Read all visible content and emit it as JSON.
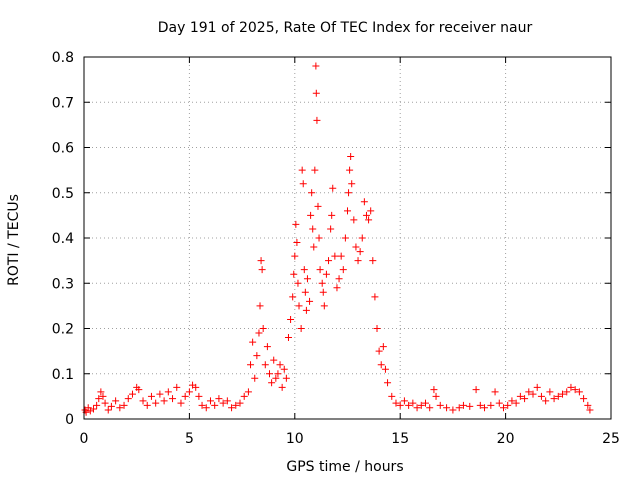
{
  "chart_data": {
    "type": "scatter",
    "title": "Day 191 of 2025, Rate Of TEC Index for receiver naur",
    "xlabel": "GPS time / hours",
    "ylabel": "ROTI / TECUs",
    "xlim": [
      0,
      25
    ],
    "ylim": [
      0,
      0.8
    ],
    "xticks": [
      0,
      5,
      10,
      15,
      20,
      25
    ],
    "yticks": [
      0,
      0.1,
      0.2,
      0.3,
      0.4,
      0.5,
      0.6,
      0.7,
      0.8
    ],
    "xtick_labels": [
      "0",
      "5",
      "10",
      "15",
      "20",
      "25"
    ],
    "ytick_labels": [
      "0",
      "0.1",
      "0.2",
      "0.3",
      "0.4",
      "0.5",
      "0.6",
      "0.7",
      "0.8"
    ],
    "grid": true,
    "marker": "+",
    "color": "#ff0000",
    "series": [
      {
        "points": [
          [
            0.05,
            0.02
          ],
          [
            0.1,
            0.015
          ],
          [
            0.2,
            0.025
          ],
          [
            0.3,
            0.018
          ],
          [
            0.45,
            0.022
          ],
          [
            0.6,
            0.03
          ],
          [
            0.7,
            0.045
          ],
          [
            0.8,
            0.06
          ],
          [
            0.9,
            0.05
          ],
          [
            1.0,
            0.035
          ],
          [
            1.15,
            0.02
          ],
          [
            1.3,
            0.028
          ],
          [
            1.5,
            0.04
          ],
          [
            1.7,
            0.025
          ],
          [
            1.9,
            0.03
          ],
          [
            2.1,
            0.045
          ],
          [
            2.3,
            0.055
          ],
          [
            2.5,
            0.07
          ],
          [
            2.6,
            0.065
          ],
          [
            2.8,
            0.04
          ],
          [
            3.0,
            0.03
          ],
          [
            3.2,
            0.05
          ],
          [
            3.4,
            0.035
          ],
          [
            3.6,
            0.055
          ],
          [
            3.8,
            0.04
          ],
          [
            4.0,
            0.06
          ],
          [
            4.2,
            0.045
          ],
          [
            4.4,
            0.07
          ],
          [
            4.6,
            0.035
          ],
          [
            4.8,
            0.05
          ],
          [
            5.0,
            0.06
          ],
          [
            5.15,
            0.075
          ],
          [
            5.3,
            0.07
          ],
          [
            5.45,
            0.05
          ],
          [
            5.6,
            0.03
          ],
          [
            5.8,
            0.025
          ],
          [
            6.0,
            0.04
          ],
          [
            6.2,
            0.03
          ],
          [
            6.4,
            0.045
          ],
          [
            6.6,
            0.035
          ],
          [
            6.8,
            0.04
          ],
          [
            7.0,
            0.025
          ],
          [
            7.2,
            0.03
          ],
          [
            7.4,
            0.035
          ],
          [
            7.6,
            0.05
          ],
          [
            7.8,
            0.06
          ],
          [
            7.9,
            0.12
          ],
          [
            8.0,
            0.17
          ],
          [
            8.1,
            0.09
          ],
          [
            8.2,
            0.14
          ],
          [
            8.3,
            0.19
          ],
          [
            8.35,
            0.25
          ],
          [
            8.4,
            0.35
          ],
          [
            8.45,
            0.33
          ],
          [
            8.5,
            0.2
          ],
          [
            8.6,
            0.12
          ],
          [
            8.7,
            0.16
          ],
          [
            8.8,
            0.1
          ],
          [
            8.9,
            0.08
          ],
          [
            9.0,
            0.13
          ],
          [
            9.1,
            0.09
          ],
          [
            9.2,
            0.1
          ],
          [
            9.3,
            0.12
          ],
          [
            9.4,
            0.07
          ],
          [
            9.5,
            0.11
          ],
          [
            9.6,
            0.09
          ],
          [
            9.7,
            0.18
          ],
          [
            9.8,
            0.22
          ],
          [
            9.9,
            0.27
          ],
          [
            9.95,
            0.32
          ],
          [
            10.0,
            0.36
          ],
          [
            10.05,
            0.43
          ],
          [
            10.1,
            0.39
          ],
          [
            10.15,
            0.3
          ],
          [
            10.2,
            0.25
          ],
          [
            10.3,
            0.2
          ],
          [
            10.35,
            0.55
          ],
          [
            10.4,
            0.52
          ],
          [
            10.45,
            0.33
          ],
          [
            10.5,
            0.28
          ],
          [
            10.55,
            0.24
          ],
          [
            10.6,
            0.31
          ],
          [
            10.7,
            0.26
          ],
          [
            10.75,
            0.45
          ],
          [
            10.8,
            0.5
          ],
          [
            10.85,
            0.42
          ],
          [
            10.9,
            0.38
          ],
          [
            10.95,
            0.55
          ],
          [
            11.0,
            0.78
          ],
          [
            11.02,
            0.72
          ],
          [
            11.05,
            0.66
          ],
          [
            11.1,
            0.47
          ],
          [
            11.15,
            0.4
          ],
          [
            11.2,
            0.33
          ],
          [
            11.3,
            0.3
          ],
          [
            11.35,
            0.28
          ],
          [
            11.4,
            0.25
          ],
          [
            11.5,
            0.32
          ],
          [
            11.6,
            0.35
          ],
          [
            11.7,
            0.42
          ],
          [
            11.75,
            0.45
          ],
          [
            11.8,
            0.51
          ],
          [
            11.9,
            0.36
          ],
          [
            12.0,
            0.29
          ],
          [
            12.1,
            0.31
          ],
          [
            12.2,
            0.36
          ],
          [
            12.3,
            0.33
          ],
          [
            12.4,
            0.4
          ],
          [
            12.5,
            0.46
          ],
          [
            12.55,
            0.5
          ],
          [
            12.6,
            0.55
          ],
          [
            12.65,
            0.58
          ],
          [
            12.7,
            0.52
          ],
          [
            12.8,
            0.44
          ],
          [
            12.9,
            0.38
          ],
          [
            13.0,
            0.35
          ],
          [
            13.1,
            0.37
          ],
          [
            13.2,
            0.4
          ],
          [
            13.3,
            0.48
          ],
          [
            13.4,
            0.45
          ],
          [
            13.5,
            0.44
          ],
          [
            13.6,
            0.46
          ],
          [
            13.7,
            0.35
          ],
          [
            13.8,
            0.27
          ],
          [
            13.9,
            0.2
          ],
          [
            14.0,
            0.15
          ],
          [
            14.1,
            0.12
          ],
          [
            14.2,
            0.16
          ],
          [
            14.3,
            0.11
          ],
          [
            14.4,
            0.08
          ],
          [
            14.6,
            0.05
          ],
          [
            14.8,
            0.035
          ],
          [
            15.0,
            0.03
          ],
          [
            15.2,
            0.04
          ],
          [
            15.4,
            0.03
          ],
          [
            15.6,
            0.035
          ],
          [
            15.8,
            0.025
          ],
          [
            16.0,
            0.03
          ],
          [
            16.2,
            0.035
          ],
          [
            16.4,
            0.025
          ],
          [
            16.6,
            0.065
          ],
          [
            16.7,
            0.05
          ],
          [
            16.9,
            0.03
          ],
          [
            17.2,
            0.025
          ],
          [
            17.5,
            0.02
          ],
          [
            17.8,
            0.025
          ],
          [
            18.0,
            0.03
          ],
          [
            18.3,
            0.028
          ],
          [
            18.6,
            0.065
          ],
          [
            18.8,
            0.03
          ],
          [
            19.0,
            0.025
          ],
          [
            19.3,
            0.03
          ],
          [
            19.5,
            0.06
          ],
          [
            19.7,
            0.035
          ],
          [
            19.9,
            0.025
          ],
          [
            20.1,
            0.03
          ],
          [
            20.3,
            0.04
          ],
          [
            20.5,
            0.035
          ],
          [
            20.7,
            0.05
          ],
          [
            20.9,
            0.045
          ],
          [
            21.1,
            0.06
          ],
          [
            21.3,
            0.055
          ],
          [
            21.5,
            0.07
          ],
          [
            21.7,
            0.05
          ],
          [
            21.9,
            0.04
          ],
          [
            22.1,
            0.06
          ],
          [
            22.3,
            0.045
          ],
          [
            22.5,
            0.05
          ],
          [
            22.7,
            0.055
          ],
          [
            22.9,
            0.06
          ],
          [
            23.1,
            0.07
          ],
          [
            23.3,
            0.065
          ],
          [
            23.5,
            0.06
          ],
          [
            23.7,
            0.045
          ],
          [
            23.9,
            0.03
          ],
          [
            24.0,
            0.02
          ]
        ]
      }
    ]
  }
}
